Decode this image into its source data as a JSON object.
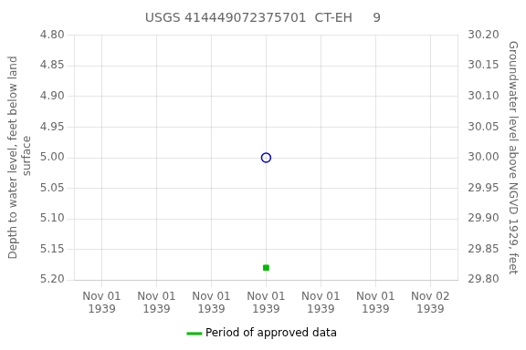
{
  "chart_data": {
    "type": "scatter",
    "title": "USGS 414449072375701  CT-EH     9",
    "ylabel": "Depth to water level, feet below land\n surface",
    "y2label": "Groundwater level above NGVD 1929, feet",
    "categories": [
      "Nov 01\n1939",
      "Nov 01\n1939",
      "Nov 01\n1939",
      "Nov 01\n1939",
      "Nov 01\n1939",
      "Nov 01\n1939",
      "Nov 02\n1939"
    ],
    "series": [
      {
        "values": [
          null,
          null,
          null,
          5.0,
          null,
          null,
          null
        ],
        "color": "#0000cc",
        "marker": "circle"
      },
      {
        "name": "Period of approved data",
        "values": [
          null,
          null,
          null,
          5.18,
          null,
          null,
          null
        ],
        "color": "#00bb00",
        "marker": "square"
      }
    ],
    "ylim": [
      5.2,
      4.8
    ],
    "yticks": [
      {
        "value": 4.8,
        "label": "4.80"
      },
      {
        "value": 4.85,
        "label": "4.85"
      },
      {
        "value": 4.9,
        "label": "4.90"
      },
      {
        "value": 4.95,
        "label": "4.95"
      },
      {
        "value": 5.0,
        "label": "5.00"
      },
      {
        "value": 5.05,
        "label": "5.05"
      },
      {
        "value": 5.1,
        "label": "5.10"
      },
      {
        "value": 5.15,
        "label": "5.15"
      },
      {
        "value": 5.2,
        "label": "5.20"
      }
    ],
    "y2lim": [
      29.8,
      30.2
    ],
    "y2ticks": [
      {
        "value": 30.2,
        "label": "30.20"
      },
      {
        "value": 30.15,
        "label": "30.15"
      },
      {
        "value": 30.1,
        "label": "30.10"
      },
      {
        "value": 30.05,
        "label": "30.05"
      },
      {
        "value": 30.0,
        "label": "30.00"
      },
      {
        "value": 29.95,
        "label": "29.95"
      },
      {
        "value": 29.9,
        "label": "29.90"
      },
      {
        "value": 29.85,
        "label": "29.85"
      },
      {
        "value": 29.8,
        "label": "29.80"
      }
    ],
    "grid": true,
    "legend": "bottom"
  }
}
